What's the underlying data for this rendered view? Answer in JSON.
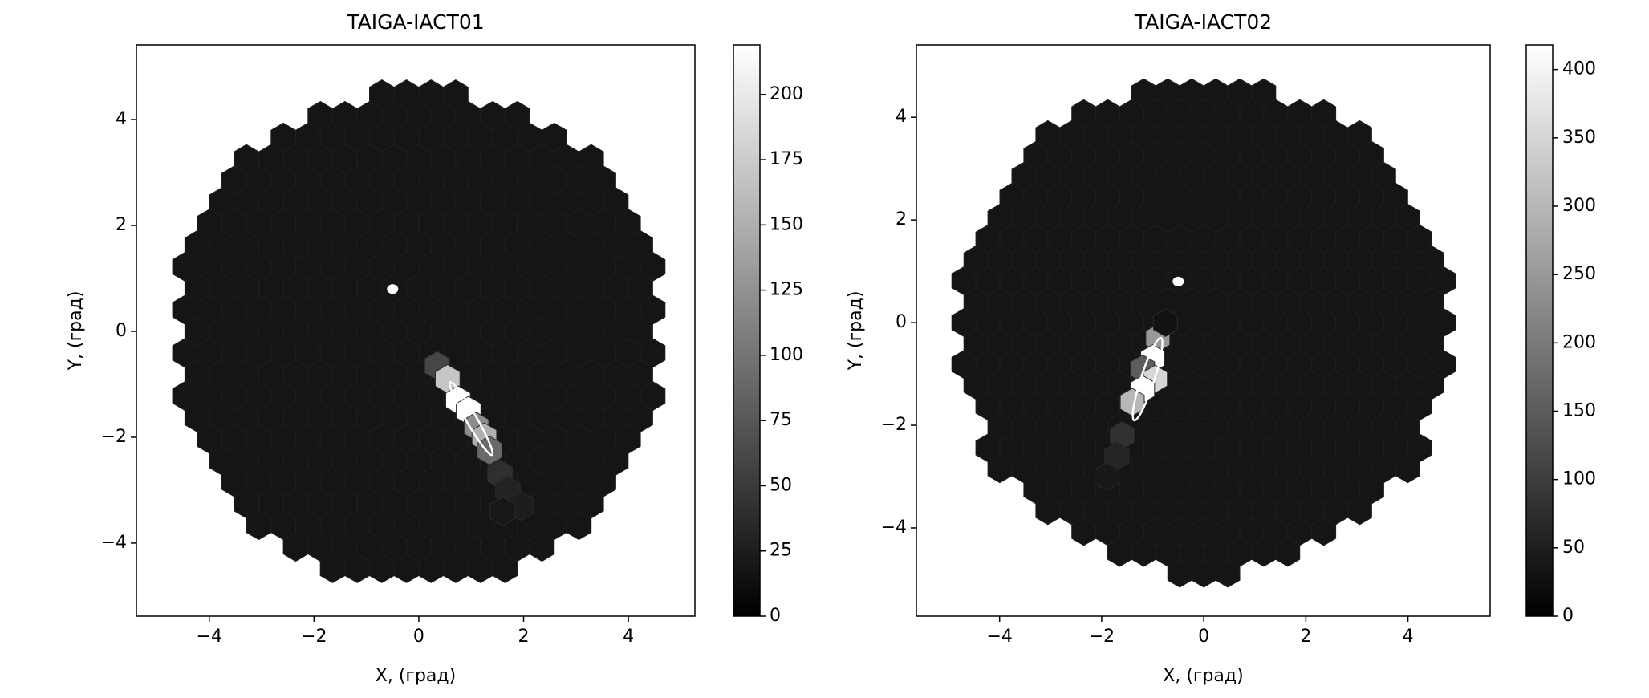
{
  "chart_data": [
    {
      "type": "hexmap",
      "title": "TAIGA-IACT01",
      "x_label": "X, (град)",
      "y_label": "Y, (град)",
      "xlim": [
        -5.39,
        5.27
      ],
      "ylim": [
        -5.38,
        5.41
      ],
      "clim": [
        0,
        219
      ],
      "xticks": [
        {
          "value": -4,
          "label": "−4"
        },
        {
          "value": -2,
          "label": "−2"
        },
        0,
        2,
        4
      ],
      "yticks": [
        {
          "value": -4,
          "label": "−4"
        },
        {
          "value": -2,
          "label": "−2"
        },
        0,
        2,
        4
      ],
      "cticks": [
        0,
        25,
        50,
        75,
        100,
        125,
        150,
        175,
        200
      ],
      "x": [
        0.35,
        0.55,
        0.75,
        0.95,
        1.1,
        1.25,
        1.35,
        1.55,
        1.7,
        1.95,
        1.6
      ],
      "y": [
        -0.65,
        -0.9,
        -1.3,
        -1.5,
        -1.8,
        -2.0,
        -2.25,
        -2.7,
        -3.0,
        -3.3,
        -3.4
      ],
      "values": [
        60,
        170,
        219,
        219,
        120,
        150,
        90,
        40,
        30,
        25,
        20
      ],
      "source": {
        "x": -0.5,
        "y": 0.8
      },
      "ellipse": {
        "x": 1.0,
        "y": -1.65,
        "length": 0.8,
        "width": 0.1,
        "angle": -60
      }
    },
    {
      "type": "hexmap",
      "title": "TAIGA-IACT02",
      "x_label": "X, (град)",
      "y_label": "Y, (град)",
      "xlim": [
        -5.63,
        5.61
      ],
      "ylim": [
        -5.72,
        5.41
      ],
      "clim": [
        0,
        418
      ],
      "xticks": [
        {
          "value": -4,
          "label": "−4"
        },
        {
          "value": -2,
          "label": "−2"
        },
        0,
        2,
        4
      ],
      "yticks": [
        {
          "value": -4,
          "label": "−4"
        },
        {
          "value": -2,
          "label": "−2"
        },
        0,
        2,
        4
      ],
      "cticks": [
        0,
        50,
        100,
        150,
        200,
        250,
        300,
        350,
        400
      ],
      "x": [
        -0.9,
        -1.0,
        -1.2,
        -0.95,
        -1.2,
        -1.4,
        -1.6,
        -1.7,
        -1.9,
        -0.75
      ],
      "y": [
        -0.3,
        -0.7,
        -0.9,
        -1.1,
        -1.3,
        -1.55,
        -2.2,
        -2.6,
        -3.0,
        0.0
      ],
      "values": [
        250,
        418,
        150,
        350,
        418,
        300,
        80,
        60,
        40,
        30
      ],
      "source": {
        "x": -0.5,
        "y": 0.8
      },
      "ellipse": {
        "x": -1.1,
        "y": -1.1,
        "length": 0.85,
        "width": 0.13,
        "angle": 72
      }
    }
  ]
}
